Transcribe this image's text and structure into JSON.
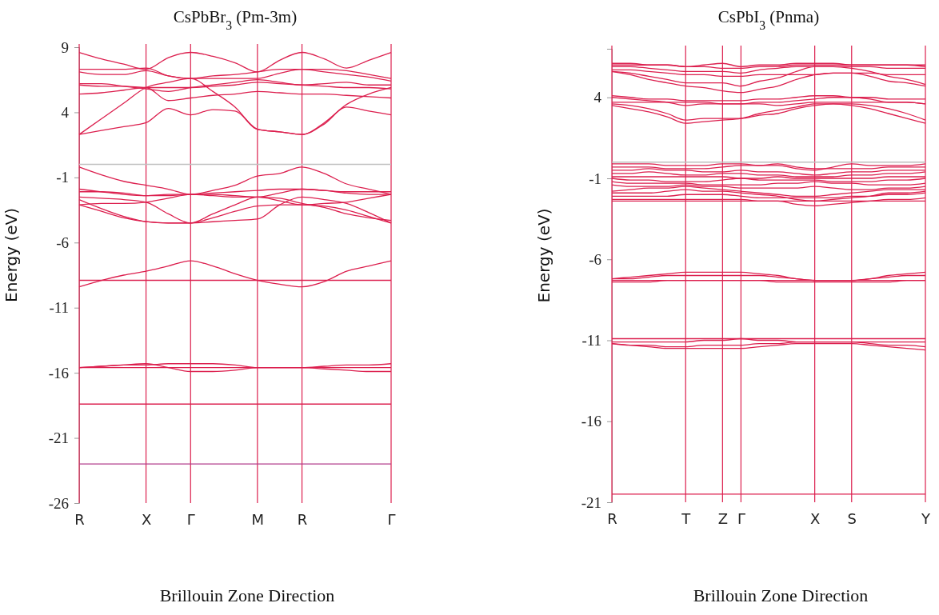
{
  "chart_data": [
    {
      "type": "line",
      "title": "CsPbBr$_{3}$  (Pm-3m)",
      "xlabel": "Brillouin Zone Direction",
      "ylabel": "Energy (eV)",
      "color": "#dc1f4e",
      "grid": "x",
      "ylim": [
        -26,
        9
      ],
      "yticks": [
        9,
        4,
        -1,
        -6,
        -11,
        -16,
        -21,
        -26
      ],
      "categories": [
        "R",
        null,
        null,
        "X",
        null,
        "Γ",
        null,
        null,
        "M",
        null,
        "R",
        null,
        null,
        null,
        "Γ"
      ],
      "ref_lines": [
        {
          "axis": "y",
          "value": 0,
          "color": "#c0c0c0"
        }
      ],
      "series": [
        {
          "values": [
            2.3,
            2.6,
            2.9,
            3.2,
            4.3,
            3.8,
            4.2,
            4.1,
            2.7,
            2.5,
            2.3,
            3.1,
            4.4,
            4.1,
            3.8
          ]
        },
        {
          "values": [
            2.3,
            3.5,
            4.7,
            5.9,
            6.3,
            6.6,
            5.6,
            4.4,
            2.7,
            2.5,
            2.3,
            3.2,
            4.6,
            5.4,
            5.9
          ]
        },
        {
          "values": [
            5.4,
            5.5,
            5.7,
            5.9,
            4.9,
            5.1,
            5.3,
            5.4,
            5.6,
            5.5,
            5.4,
            5.4,
            5.3,
            5.2,
            5.1
          ]
        },
        {
          "values": [
            6.1,
            6.0,
            6.0,
            5.9,
            5.9,
            5.9,
            6.0,
            6.1,
            6.3,
            6.2,
            6.1,
            6.0,
            5.9,
            5.9,
            5.8
          ]
        },
        {
          "values": [
            6.2,
            6.2,
            6.0,
            5.8,
            5.6,
            5.9,
            6.1,
            6.3,
            6.5,
            6.3,
            6.1,
            6.2,
            6.3,
            6.1,
            6.1
          ]
        },
        {
          "values": [
            7.3,
            7.3,
            7.3,
            7.4,
            6.8,
            6.6,
            6.6,
            6.6,
            6.6,
            7.0,
            7.3,
            7.3,
            7.2,
            6.9,
            6.6
          ]
        },
        {
          "values": [
            7.1,
            6.9,
            6.9,
            7.2,
            6.8,
            6.6,
            6.8,
            6.9,
            7.1,
            7.3,
            7.3,
            7.1,
            6.9,
            6.7,
            6.4
          ]
        },
        {
          "values": [
            8.6,
            8.1,
            7.7,
            7.3,
            8.2,
            8.6,
            8.3,
            7.8,
            7.1,
            8.0,
            8.6,
            8.1,
            7.4,
            8.0,
            8.6
          ]
        },
        {
          "values": [
            -0.2,
            -0.8,
            -1.3,
            -1.6,
            -1.9,
            -2.3,
            -2.0,
            -1.6,
            -0.9,
            -0.7,
            -0.2,
            -0.7,
            -1.5,
            -1.9,
            -2.3
          ]
        },
        {
          "values": [
            -1.9,
            -2.1,
            -2.3,
            -2.4,
            -2.4,
            -2.3,
            -2.3,
            -2.4,
            -2.5,
            -2.2,
            -1.9,
            -2.0,
            -2.2,
            -2.3,
            -2.3
          ]
        },
        {
          "values": [
            -2.1,
            -2.1,
            -2.2,
            -2.4,
            -2.3,
            -2.3,
            -2.2,
            -2.1,
            -2.0,
            -1.9,
            -1.9,
            -2.0,
            -2.1,
            -2.1,
            -2.1
          ]
        },
        {
          "values": [
            -2.5,
            -2.6,
            -2.7,
            -2.9,
            -3.8,
            -4.5,
            -4.4,
            -4.3,
            -4.2,
            -3.1,
            -2.5,
            -2.7,
            -3.0,
            -3.7,
            -4.5
          ]
        },
        {
          "values": [
            -2.7,
            -3.4,
            -4.0,
            -4.4,
            -4.5,
            -4.5,
            -3.8,
            -3.1,
            -2.5,
            -2.6,
            -3.0,
            -3.3,
            -3.8,
            -4.1,
            -4.3
          ]
        },
        {
          "values": [
            -3.1,
            -3.6,
            -4.1,
            -4.4,
            -4.5,
            -4.5,
            -4.1,
            -3.6,
            -3.2,
            -3.1,
            -3.1,
            -3.2,
            -3.5,
            -4.0,
            -4.5
          ]
        },
        {
          "values": [
            -3.1,
            -3.0,
            -3.0,
            -2.9,
            -2.6,
            -2.3,
            -2.4,
            -2.5,
            -2.5,
            -2.8,
            -3.1,
            -3.0,
            -2.9,
            -2.6,
            -2.3
          ]
        },
        {
          "values": [
            -9.4,
            -8.9,
            -8.5,
            -8.2,
            -7.8,
            -7.4,
            -7.8,
            -8.4,
            -8.9,
            -9.2,
            -9.4,
            -9.0,
            -8.2,
            -7.8,
            -7.4
          ]
        },
        {
          "values": [
            -8.9,
            -8.9,
            -8.9,
            -8.9,
            -8.9,
            -8.9,
            -8.9,
            -8.9,
            -8.9,
            -8.9,
            -8.9,
            -8.9,
            -8.9,
            -8.9,
            -8.9
          ]
        },
        {
          "values": [
            -15.6,
            -15.5,
            -15.4,
            -15.3,
            -15.6,
            -15.9,
            -15.9,
            -15.8,
            -15.6,
            -15.6,
            -15.6,
            -15.7,
            -15.8,
            -15.9,
            -15.9
          ]
        },
        {
          "values": [
            -15.6,
            -15.5,
            -15.4,
            -15.4,
            -15.3,
            -15.3,
            -15.3,
            -15.4,
            -15.6,
            -15.6,
            -15.6,
            -15.5,
            -15.4,
            -15.4,
            -15.3
          ]
        },
        {
          "values": [
            -15.6,
            -15.6,
            -15.6,
            -15.6,
            -15.6,
            -15.6,
            -15.6,
            -15.6,
            -15.6,
            -15.6,
            -15.6,
            -15.6,
            -15.6,
            -15.6,
            -15.6
          ]
        },
        {
          "values": [
            -18.4,
            -18.4,
            -18.4,
            -18.4,
            -18.4,
            -18.4,
            -18.4,
            -18.4,
            -18.4,
            -18.4,
            -18.4,
            -18.4,
            -18.4,
            -18.4,
            -18.4
          ]
        },
        {
          "color": "#b03a8a",
          "values": [
            -23.0,
            -23.0,
            -23.0,
            -23.0,
            -23.0,
            -23.0,
            -23.0,
            -23.0,
            -23.0,
            -23.0,
            -23.0,
            -23.0,
            -23.0,
            -23.0,
            -23.0
          ]
        }
      ]
    },
    {
      "type": "line",
      "title": "CsPbI$_{3}$ (Pnma)",
      "xlabel": "Brillouin Zone Direction",
      "ylabel": "Energy (eV)",
      "color": "#dc1f4e",
      "grid": "x",
      "ylim": [
        -21,
        7
      ],
      "yticks": [
        4,
        -1,
        -6,
        -11,
        -16,
        -21
      ],
      "categories": [
        "R",
        null,
        null,
        null,
        "T",
        null,
        "Z",
        "Γ",
        null,
        null,
        null,
        "X",
        null,
        "S",
        null,
        null,
        null,
        "Y"
      ],
      "ref_lines": [
        {
          "axis": "y",
          "value": 0,
          "color": "#c0c0c0"
        }
      ],
      "series": [
        {
          "values": [
            6.1,
            6.1,
            6.0,
            6.0,
            5.9,
            6.0,
            6.1,
            5.9,
            6.0,
            6.0,
            6.1,
            6.1,
            6.1,
            6.0,
            6.0,
            6.0,
            6.0,
            6.0
          ]
        },
        {
          "values": [
            6.0,
            6.0,
            6.0,
            6.0,
            5.9,
            5.9,
            5.8,
            5.8,
            5.9,
            5.9,
            6.0,
            6.0,
            6.0,
            6.0,
            6.0,
            6.0,
            6.0,
            5.9
          ]
        },
        {
          "values": [
            5.9,
            5.9,
            5.8,
            5.7,
            5.6,
            5.6,
            5.6,
            5.5,
            5.7,
            5.8,
            5.9,
            5.9,
            5.9,
            5.9,
            5.9,
            5.8,
            5.8,
            5.8
          ]
        },
        {
          "values": [
            5.7,
            5.7,
            5.6,
            5.5,
            5.4,
            5.4,
            5.3,
            5.3,
            5.4,
            5.4,
            5.4,
            5.4,
            5.5,
            5.5,
            5.5,
            5.4,
            5.4,
            5.4
          ]
        },
        {
          "values": [
            5.6,
            5.5,
            5.3,
            5.1,
            4.9,
            4.9,
            4.9,
            4.7,
            5.0,
            5.2,
            5.6,
            5.9,
            5.9,
            5.8,
            5.6,
            5.3,
            5.1,
            4.8
          ]
        },
        {
          "values": [
            5.6,
            5.4,
            5.1,
            4.9,
            4.7,
            4.6,
            4.4,
            4.3,
            4.5,
            4.7,
            5.1,
            5.4,
            5.5,
            5.5,
            5.3,
            5.0,
            4.9,
            4.7
          ]
        },
        {
          "values": [
            4.1,
            4.0,
            3.9,
            3.9,
            3.8,
            3.8,
            3.8,
            3.8,
            3.9,
            3.9,
            4.0,
            4.1,
            4.1,
            4.0,
            4.0,
            3.9,
            3.9,
            3.9
          ]
        },
        {
          "values": [
            4.0,
            3.9,
            3.8,
            3.7,
            3.5,
            3.6,
            3.6,
            3.6,
            3.7,
            3.7,
            3.8,
            3.9,
            4.0,
            4.0,
            3.9,
            3.7,
            3.7,
            3.6
          ]
        },
        {
          "values": [
            3.7,
            3.7,
            3.7,
            3.7,
            3.7,
            3.7,
            3.6,
            3.6,
            3.6,
            3.5,
            3.6,
            3.7,
            3.7,
            3.7,
            3.7,
            3.7,
            3.7,
            3.6
          ]
        },
        {
          "values": [
            3.6,
            3.5,
            3.3,
            3.0,
            2.6,
            2.7,
            2.7,
            2.7,
            2.9,
            3.0,
            3.3,
            3.5,
            3.6,
            3.6,
            3.5,
            3.3,
            3.0,
            2.6
          ]
        },
        {
          "values": [
            3.5,
            3.3,
            3.1,
            2.8,
            2.4,
            2.5,
            2.6,
            2.7,
            3.0,
            3.2,
            3.4,
            3.6,
            3.6,
            3.5,
            3.3,
            3.0,
            2.7,
            2.4
          ]
        },
        {
          "values": [
            -0.1,
            -0.1,
            -0.1,
            -0.2,
            -0.2,
            -0.2,
            -0.1,
            -0.1,
            -0.2,
            -0.2,
            -0.4,
            -0.5,
            -0.3,
            -0.1,
            -0.2,
            -0.2,
            -0.2,
            -0.1
          ]
        },
        {
          "values": [
            -0.3,
            -0.3,
            -0.3,
            -0.4,
            -0.4,
            -0.4,
            -0.3,
            -0.2,
            -0.2,
            -0.1,
            -0.3,
            -0.4,
            -0.4,
            -0.4,
            -0.4,
            -0.3,
            -0.3,
            -0.3
          ]
        },
        {
          "values": [
            -0.5,
            -0.5,
            -0.4,
            -0.5,
            -0.5,
            -0.6,
            -0.6,
            -0.5,
            -0.6,
            -0.6,
            -0.7,
            -0.8,
            -0.7,
            -0.6,
            -0.6,
            -0.5,
            -0.5,
            -0.5
          ]
        },
        {
          "values": [
            -0.7,
            -0.7,
            -0.6,
            -0.7,
            -0.8,
            -0.8,
            -0.7,
            -0.7,
            -0.8,
            -0.8,
            -0.9,
            -0.9,
            -0.9,
            -0.8,
            -0.8,
            -0.7,
            -0.7,
            -0.6
          ]
        },
        {
          "values": [
            -0.9,
            -0.9,
            -0.9,
            -0.9,
            -0.9,
            -0.9,
            -0.9,
            -1.0,
            -1.0,
            -0.9,
            -1.0,
            -1.0,
            -1.0,
            -1.0,
            -1.0,
            -0.9,
            -0.9,
            -0.9
          ]
        },
        {
          "values": [
            -1.0,
            -1.1,
            -1.1,
            -1.2,
            -1.2,
            -1.2,
            -1.1,
            -1.0,
            -1.1,
            -1.1,
            -1.1,
            -1.1,
            -1.2,
            -1.2,
            -1.2,
            -1.1,
            -1.1,
            -1.0
          ]
        },
        {
          "values": [
            -1.2,
            -1.3,
            -1.3,
            -1.3,
            -1.3,
            -1.4,
            -1.4,
            -1.4,
            -1.4,
            -1.3,
            -1.3,
            -1.2,
            -1.3,
            -1.3,
            -1.4,
            -1.4,
            -1.4,
            -1.3
          ]
        },
        {
          "values": [
            -1.4,
            -1.5,
            -1.5,
            -1.5,
            -1.4,
            -1.5,
            -1.5,
            -1.6,
            -1.6,
            -1.6,
            -1.6,
            -1.5,
            -1.6,
            -1.7,
            -1.7,
            -1.6,
            -1.6,
            -1.5
          ]
        },
        {
          "values": [
            -1.8,
            -1.7,
            -1.6,
            -1.6,
            -1.5,
            -1.6,
            -1.7,
            -1.8,
            -1.9,
            -2.0,
            -2.1,
            -2.1,
            -2.0,
            -1.9,
            -1.8,
            -1.7,
            -1.7,
            -1.7
          ]
        },
        {
          "values": [
            -1.9,
            -1.9,
            -1.9,
            -1.8,
            -1.7,
            -1.8,
            -1.8,
            -1.9,
            -2.0,
            -2.1,
            -2.3,
            -2.4,
            -2.3,
            -2.2,
            -2.1,
            -1.9,
            -1.9,
            -1.8
          ]
        },
        {
          "values": [
            -2.1,
            -2.1,
            -2.1,
            -2.1,
            -2.0,
            -2.0,
            -2.0,
            -2.1,
            -2.2,
            -2.2,
            -2.2,
            -2.2,
            -2.2,
            -2.1,
            -2.1,
            -2.0,
            -2.0,
            -1.9
          ]
        },
        {
          "values": [
            -2.3,
            -2.3,
            -2.3,
            -2.3,
            -2.3,
            -2.3,
            -2.3,
            -2.3,
            -2.4,
            -2.4,
            -2.6,
            -2.7,
            -2.6,
            -2.5,
            -2.4,
            -2.3,
            -2.3,
            -2.2
          ]
        },
        {
          "values": [
            -2.4,
            -2.4,
            -2.4,
            -2.4,
            -2.4,
            -2.4,
            -2.4,
            -2.4,
            -2.4,
            -2.4,
            -2.4,
            -2.4,
            -2.4,
            -2.4,
            -2.4,
            -2.4,
            -2.4,
            -2.4
          ]
        },
        {
          "values": [
            -7.2,
            -7.1,
            -7.0,
            -6.9,
            -6.8,
            -6.8,
            -6.8,
            -6.8,
            -6.9,
            -7.0,
            -7.2,
            -7.3,
            -7.3,
            -7.3,
            -7.2,
            -7.0,
            -6.9,
            -6.8
          ]
        },
        {
          "values": [
            -7.2,
            -7.2,
            -7.1,
            -7.0,
            -7.0,
            -7.0,
            -7.0,
            -7.0,
            -7.0,
            -7.1,
            -7.2,
            -7.3,
            -7.3,
            -7.3,
            -7.2,
            -7.1,
            -7.0,
            -7.0
          ]
        },
        {
          "values": [
            -7.3,
            -7.3,
            -7.3,
            -7.3,
            -7.3,
            -7.3,
            -7.3,
            -7.3,
            -7.3,
            -7.3,
            -7.3,
            -7.3,
            -7.3,
            -7.3,
            -7.3,
            -7.3,
            -7.3,
            -7.3
          ]
        },
        {
          "values": [
            -7.4,
            -7.4,
            -7.4,
            -7.3,
            -7.3,
            -7.3,
            -7.3,
            -7.3,
            -7.3,
            -7.4,
            -7.4,
            -7.4,
            -7.4,
            -7.4,
            -7.4,
            -7.4,
            -7.3,
            -7.3
          ]
        },
        {
          "values": [
            -10.9,
            -10.9,
            -10.9,
            -10.9,
            -10.9,
            -10.9,
            -10.9,
            -10.9,
            -10.9,
            -10.9,
            -10.9,
            -10.9,
            -10.9,
            -10.9,
            -10.9,
            -10.9,
            -10.9,
            -10.9
          ]
        },
        {
          "values": [
            -11.1,
            -11.1,
            -11.1,
            -11.1,
            -11.1,
            -11.0,
            -11.0,
            -10.9,
            -11.0,
            -11.0,
            -11.1,
            -11.1,
            -11.1,
            -11.1,
            -11.1,
            -11.1,
            -11.1,
            -11.1
          ]
        },
        {
          "values": [
            -11.2,
            -11.3,
            -11.3,
            -11.4,
            -11.4,
            -11.3,
            -11.3,
            -11.3,
            -11.2,
            -11.2,
            -11.1,
            -11.1,
            -11.1,
            -11.1,
            -11.2,
            -11.3,
            -11.3,
            -11.4
          ]
        },
        {
          "values": [
            -11.2,
            -11.3,
            -11.4,
            -11.5,
            -11.5,
            -11.5,
            -11.5,
            -11.5,
            -11.4,
            -11.3,
            -11.2,
            -11.2,
            -11.2,
            -11.2,
            -11.3,
            -11.4,
            -11.5,
            -11.6
          ]
        },
        {
          "values": [
            -20.5,
            -20.5,
            -20.5,
            -20.5,
            -20.5,
            -20.5,
            -20.5,
            -20.5,
            -20.5,
            -20.5,
            -20.5,
            -20.5,
            -20.5,
            -20.5,
            -20.5,
            -20.5,
            -20.5,
            -20.5
          ]
        }
      ]
    }
  ]
}
